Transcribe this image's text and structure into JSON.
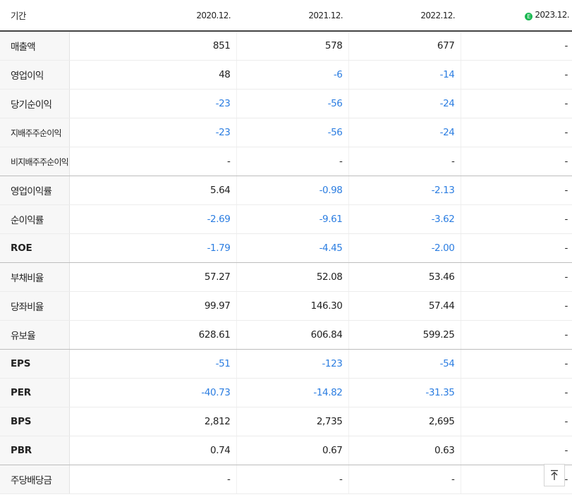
{
  "header": {
    "period_label": "기간",
    "years": [
      "2020.12.",
      "2021.12.",
      "2022.12."
    ],
    "estimate_year": "2023.12.",
    "estimate_mark": "E"
  },
  "rows": [
    {
      "label": "매출액",
      "values": [
        "851",
        "578",
        "677"
      ],
      "estimate": "-"
    },
    {
      "label": "영업이익",
      "values": [
        "48",
        "-6",
        "-14"
      ],
      "estimate": "-"
    },
    {
      "label": "당기순이익",
      "values": [
        "-23",
        "-56",
        "-24"
      ],
      "estimate": "-"
    },
    {
      "label": "지배주주순이익",
      "values": [
        "-23",
        "-56",
        "-24"
      ],
      "estimate": "-"
    },
    {
      "label": "비지배주주순이익",
      "values": [
        "-",
        "-",
        "-"
      ],
      "estimate": "-"
    },
    {
      "label": "영업이익률",
      "values": [
        "5.64",
        "-0.98",
        "-2.13"
      ],
      "estimate": "-"
    },
    {
      "label": "순이익률",
      "values": [
        "-2.69",
        "-9.61",
        "-3.62"
      ],
      "estimate": "-"
    },
    {
      "label": "ROE",
      "values": [
        "-1.79",
        "-4.45",
        "-2.00"
      ],
      "estimate": "-"
    },
    {
      "label": "부채비율",
      "values": [
        "57.27",
        "52.08",
        "53.46"
      ],
      "estimate": "-"
    },
    {
      "label": "당좌비율",
      "values": [
        "99.97",
        "146.30",
        "57.44"
      ],
      "estimate": "-"
    },
    {
      "label": "유보율",
      "values": [
        "628.61",
        "606.84",
        "599.25"
      ],
      "estimate": "-"
    },
    {
      "label": "EPS",
      "values": [
        "-51",
        "-123",
        "-54"
      ],
      "estimate": "-"
    },
    {
      "label": "PER",
      "values": [
        "-40.73",
        "-14.82",
        "-31.35"
      ],
      "estimate": "-"
    },
    {
      "label": "BPS",
      "values": [
        "2,812",
        "2,735",
        "2,695"
      ],
      "estimate": "-"
    },
    {
      "label": "PBR",
      "values": [
        "0.74",
        "0.67",
        "0.63"
      ],
      "estimate": "-"
    },
    {
      "label": "주당배당금",
      "values": [
        "-",
        "-",
        "-"
      ],
      "estimate": "-"
    }
  ],
  "colors": {
    "negative": "#2b7de1",
    "estimate_badge": "#1db954"
  },
  "scroll_top_icon": "arrow-up-to-top-icon"
}
